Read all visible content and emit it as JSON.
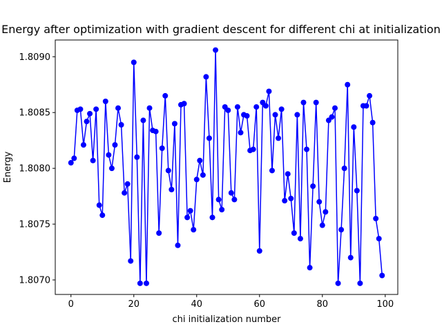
{
  "chart_data": {
    "type": "line",
    "title": "Energy after optimization with gradient descent for different chi at initialization",
    "xlabel": "chi initialization number",
    "ylabel": "Energy",
    "xlim": [
      -5,
      104
    ],
    "ylim": [
      1.80687,
      1.80915
    ],
    "xticks": [
      0,
      20,
      40,
      60,
      80,
      100
    ],
    "xtick_labels": [
      "0",
      "20",
      "40",
      "60",
      "80",
      "100"
    ],
    "yticks": [
      1.807,
      1.8075,
      1.808,
      1.8085,
      1.809
    ],
    "ytick_labels": [
      "1.8070",
      "1.8075",
      "1.8080",
      "1.8085",
      "1.8090"
    ],
    "grid": false,
    "legend": "none",
    "series": [
      {
        "color": "#0000ff",
        "marker": "circle",
        "x": [
          0,
          1,
          2,
          3,
          4,
          5,
          6,
          7,
          8,
          9,
          10,
          11,
          12,
          13,
          14,
          15,
          16,
          17,
          18,
          19,
          20,
          21,
          22,
          23,
          24,
          25,
          26,
          27,
          28,
          29,
          30,
          31,
          32,
          33,
          34,
          35,
          36,
          37,
          38,
          39,
          40,
          41,
          42,
          43,
          44,
          45,
          46,
          47,
          48,
          49,
          50,
          51,
          52,
          53,
          54,
          55,
          56,
          57,
          58,
          59,
          60,
          61,
          62,
          63,
          64,
          65,
          66,
          67,
          68,
          69,
          70,
          71,
          72,
          73,
          74,
          75,
          76,
          77,
          78,
          79,
          80,
          81,
          82,
          83,
          84,
          85,
          86,
          87,
          88,
          89,
          90,
          91,
          92,
          93,
          94,
          95,
          96,
          97,
          98,
          99
        ],
        "values": [
          1.80805,
          1.80809,
          1.80852,
          1.80853,
          1.80821,
          1.80842,
          1.80849,
          1.80807,
          1.80853,
          1.80767,
          1.80758,
          1.8086,
          1.80812,
          1.808,
          1.80821,
          1.80854,
          1.80839,
          1.80778,
          1.80786,
          1.80717,
          1.80895,
          1.8081,
          1.80697,
          1.80843,
          1.80697,
          1.80854,
          1.80834,
          1.80833,
          1.80742,
          1.80818,
          1.80865,
          1.80798,
          1.80781,
          1.8084,
          1.80731,
          1.80857,
          1.80858,
          1.80756,
          1.80762,
          1.80745,
          1.8079,
          1.80807,
          1.80794,
          1.80882,
          1.80827,
          1.80756,
          1.80906,
          1.80772,
          1.80763,
          1.80855,
          1.80852,
          1.80778,
          1.80772,
          1.80855,
          1.80832,
          1.80848,
          1.80847,
          1.80816,
          1.80817,
          1.80855,
          1.80726,
          1.80859,
          1.80856,
          1.80869,
          1.80798,
          1.80848,
          1.80827,
          1.80853,
          1.80771,
          1.80795,
          1.80773,
          1.80742,
          1.80848,
          1.80737,
          1.80859,
          1.80817,
          1.80711,
          1.80784,
          1.80859,
          1.8077,
          1.80749,
          1.80761,
          1.80843,
          1.80846,
          1.80854,
          1.80697,
          1.80745,
          1.808,
          1.80875,
          1.8072,
          1.80837,
          1.8078,
          1.80697,
          1.80856,
          1.80856,
          1.80865,
          1.80841,
          1.80755,
          1.80737,
          1.80704
        ]
      }
    ]
  }
}
